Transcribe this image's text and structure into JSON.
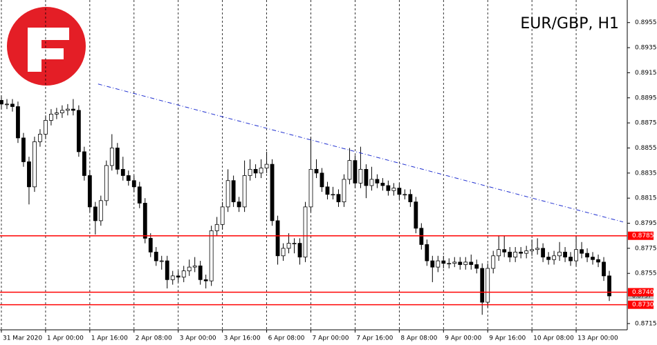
{
  "chart_data": {
    "type": "candlestick",
    "title": "EUR/GBP, H1",
    "xlim": [
      -0.5,
      226.5
    ],
    "xticks": [
      {
        "value": 0,
        "label": "31 Mar 2020"
      },
      {
        "value": 16,
        "label": "1 Apr 00:00"
      },
      {
        "value": 32,
        "label": "1 Apr 16:00"
      },
      {
        "value": 48,
        "label": "2 Apr 08:00"
      },
      {
        "value": 64,
        "label": "3 Apr 00:00"
      },
      {
        "value": 80,
        "label": "3 Apr 16:00"
      },
      {
        "value": 96,
        "label": "6 Apr 08:00"
      },
      {
        "value": 112,
        "label": "7 Apr 00:00"
      },
      {
        "value": 128,
        "label": "7 Apr 16:00"
      },
      {
        "value": 144,
        "label": "8 Apr 08:00"
      },
      {
        "value": 160,
        "label": "9 Apr 00:00"
      },
      {
        "value": 176,
        "label": "9 Apr 16:00"
      },
      {
        "value": 192,
        "label": "10 Apr 08:00"
      },
      {
        "value": 208,
        "label": "13 Apr 00:00"
      }
    ],
    "ylim": [
      0.871,
      0.8973
    ],
    "yticks": [
      0.8955,
      0.8935,
      0.8915,
      0.8895,
      0.8875,
      0.8855,
      0.8835,
      0.8815,
      0.8795,
      0.8775,
      0.8755,
      0.8715
    ],
    "x": [
      0,
      2,
      4,
      6,
      8,
      10,
      12,
      14,
      16,
      18,
      20,
      22,
      24,
      26,
      28,
      30,
      32,
      34,
      36,
      38,
      40,
      42,
      44,
      46,
      48,
      50,
      52,
      54,
      56,
      58,
      60,
      62,
      64,
      66,
      68,
      70,
      72,
      74,
      76,
      78,
      80,
      82,
      84,
      86,
      88,
      90,
      92,
      94,
      96,
      98,
      100,
      102,
      104,
      106,
      108,
      110,
      112,
      114,
      116,
      118,
      120,
      122,
      124,
      126,
      128,
      130,
      132,
      134,
      136,
      138,
      140,
      142,
      144,
      146,
      148,
      150,
      152,
      154,
      156,
      158,
      160,
      162,
      164,
      166,
      168,
      170,
      172,
      174,
      176,
      178,
      180,
      182,
      184,
      186,
      188,
      190,
      192,
      194,
      196,
      198,
      200,
      202,
      204,
      206,
      208,
      210,
      212,
      214,
      216,
      218,
      220
    ],
    "open": [
      0.8893,
      0.889,
      0.889,
      0.8888,
      0.8863,
      0.8844,
      0.8824,
      0.886,
      0.8866,
      0.8877,
      0.8882,
      0.8883,
      0.8885,
      0.8886,
      0.8885,
      0.8852,
      0.8833,
      0.8808,
      0.8797,
      0.8813,
      0.8841,
      0.8855,
      0.8838,
      0.8833,
      0.8829,
      0.8824,
      0.8811,
      0.8783,
      0.8772,
      0.8765,
      0.8765,
      0.875,
      0.8753,
      0.8752,
      0.8757,
      0.876,
      0.8761,
      0.875,
      0.8749,
      0.8789,
      0.8794,
      0.8808,
      0.8829,
      0.8812,
      0.8808,
      0.8833,
      0.8838,
      0.8835,
      0.8839,
      0.8842,
      0.8797,
      0.8769,
      0.8775,
      0.8779,
      0.8779,
      0.8768,
      0.8808,
      0.8838,
      0.8835,
      0.8824,
      0.8818,
      0.8818,
      0.8812,
      0.883,
      0.8845,
      0.8827,
      0.8838,
      0.8825,
      0.883,
      0.8827,
      0.8825,
      0.8821,
      0.8823,
      0.8818,
      0.8818,
      0.8812,
      0.8791,
      0.8778,
      0.8765,
      0.876,
      0.8765,
      0.8763,
      0.8763,
      0.8764,
      0.8762,
      0.8764,
      0.8762,
      0.8759,
      0.8732,
      0.8759,
      0.8769,
      0.8774,
      0.8772,
      0.8768,
      0.8772,
      0.8771,
      0.8773,
      0.8774,
      0.8775,
      0.8768,
      0.8766,
      0.8769,
      0.8772,
      0.8768,
      0.8765,
      0.8774,
      0.8771,
      0.8768,
      0.8766,
      0.8764,
      0.8753
    ],
    "high": [
      0.8897,
      0.8894,
      0.8894,
      0.8892,
      0.8867,
      0.8848,
      0.8864,
      0.887,
      0.8881,
      0.8886,
      0.8887,
      0.8889,
      0.889,
      0.8894,
      0.8889,
      0.8856,
      0.8837,
      0.8812,
      0.8817,
      0.8845,
      0.8866,
      0.8859,
      0.8848,
      0.8837,
      0.8833,
      0.8828,
      0.8815,
      0.8787,
      0.8776,
      0.8769,
      0.8769,
      0.8757,
      0.8757,
      0.8761,
      0.8766,
      0.8768,
      0.8765,
      0.8754,
      0.8793,
      0.88,
      0.8812,
      0.8838,
      0.8833,
      0.8816,
      0.8845,
      0.8846,
      0.8842,
      0.8846,
      0.8852,
      0.8846,
      0.8801,
      0.8779,
      0.8787,
      0.8783,
      0.8783,
      0.8812,
      0.8864,
      0.8846,
      0.8839,
      0.8828,
      0.8824,
      0.8822,
      0.8834,
      0.8855,
      0.8849,
      0.8856,
      0.8842,
      0.884,
      0.8834,
      0.8831,
      0.8829,
      0.8827,
      0.8827,
      0.8822,
      0.8822,
      0.8816,
      0.8795,
      0.8782,
      0.8769,
      0.8769,
      0.8769,
      0.8767,
      0.8768,
      0.8768,
      0.8768,
      0.877,
      0.8766,
      0.8763,
      0.8763,
      0.8773,
      0.8785,
      0.8785,
      0.8776,
      0.8776,
      0.8776,
      0.8777,
      0.8782,
      0.8783,
      0.8779,
      0.8772,
      0.8773,
      0.878,
      0.8776,
      0.8772,
      0.8785,
      0.878,
      0.8775,
      0.8772,
      0.877,
      0.8768,
      0.8757
    ],
    "low": [
      0.8886,
      0.8886,
      0.8884,
      0.8859,
      0.884,
      0.881,
      0.882,
      0.8856,
      0.8862,
      0.8873,
      0.8878,
      0.8879,
      0.8881,
      0.8881,
      0.8848,
      0.8829,
      0.8804,
      0.8786,
      0.8793,
      0.8809,
      0.8837,
      0.8834,
      0.8829,
      0.8825,
      0.882,
      0.8807,
      0.8779,
      0.8768,
      0.8761,
      0.8758,
      0.8743,
      0.8746,
      0.8748,
      0.8748,
      0.8753,
      0.8756,
      0.8746,
      0.8743,
      0.8745,
      0.8785,
      0.879,
      0.8804,
      0.8808,
      0.8804,
      0.8804,
      0.8829,
      0.8831,
      0.8831,
      0.8835,
      0.8793,
      0.8762,
      0.8765,
      0.8771,
      0.8771,
      0.8762,
      0.8764,
      0.8804,
      0.8831,
      0.882,
      0.8814,
      0.8814,
      0.8808,
      0.8808,
      0.8826,
      0.8823,
      0.8823,
      0.8815,
      0.8821,
      0.8823,
      0.8821,
      0.8817,
      0.8817,
      0.8814,
      0.8814,
      0.8808,
      0.8787,
      0.8774,
      0.8761,
      0.8748,
      0.8756,
      0.8759,
      0.8759,
      0.876,
      0.8758,
      0.8758,
      0.8758,
      0.8755,
      0.8722,
      0.8728,
      0.8755,
      0.8765,
      0.8768,
      0.8764,
      0.8764,
      0.8767,
      0.8767,
      0.8769,
      0.877,
      0.8764,
      0.8762,
      0.8762,
      0.8765,
      0.8764,
      0.8761,
      0.8761,
      0.8767,
      0.8764,
      0.8762,
      0.876,
      0.8749,
      0.8733
    ],
    "close": [
      0.889,
      0.889,
      0.8888,
      0.8863,
      0.8844,
      0.8824,
      0.886,
      0.8866,
      0.8877,
      0.8882,
      0.8883,
      0.8885,
      0.8886,
      0.8885,
      0.8852,
      0.8833,
      0.8808,
      0.8797,
      0.8813,
      0.8841,
      0.8855,
      0.8838,
      0.8833,
      0.8829,
      0.8824,
      0.8811,
      0.8783,
      0.8772,
      0.8765,
      0.8765,
      0.875,
      0.8753,
      0.8752,
      0.8757,
      0.876,
      0.8761,
      0.875,
      0.8749,
      0.8789,
      0.8794,
      0.8808,
      0.8829,
      0.8812,
      0.8808,
      0.8833,
      0.8838,
      0.8835,
      0.8839,
      0.8842,
      0.8797,
      0.8769,
      0.8775,
      0.8779,
      0.8779,
      0.8768,
      0.8808,
      0.8838,
      0.8835,
      0.8824,
      0.8818,
      0.8818,
      0.8812,
      0.883,
      0.8845,
      0.8827,
      0.8838,
      0.8825,
      0.883,
      0.8827,
      0.8825,
      0.8821,
      0.8823,
      0.8818,
      0.8818,
      0.8812,
      0.8791,
      0.8778,
      0.8765,
      0.876,
      0.8765,
      0.8763,
      0.8763,
      0.8764,
      0.8762,
      0.8764,
      0.8762,
      0.8759,
      0.8732,
      0.8759,
      0.8769,
      0.8774,
      0.8772,
      0.8768,
      0.8772,
      0.8771,
      0.8773,
      0.8774,
      0.8775,
      0.8768,
      0.8766,
      0.8769,
      0.8772,
      0.8768,
      0.8765,
      0.8774,
      0.8771,
      0.8768,
      0.8766,
      0.8764,
      0.8753,
      0.8737
    ],
    "up_color": "#ffffff",
    "down_color": "#000000",
    "levels": [
      0.8785,
      {
        "value": 0.874,
        "label": "0.8740"
      },
      {
        "value": 0.873,
        "label": "0.8730"
      }
    ],
    "level_color": "#ff0000",
    "last_price": 0.8737,
    "trendline": {
      "x": [
        35,
        225
      ],
      "y": [
        0.8906,
        0.8796
      ],
      "color": "#1f2fd0"
    }
  }
}
